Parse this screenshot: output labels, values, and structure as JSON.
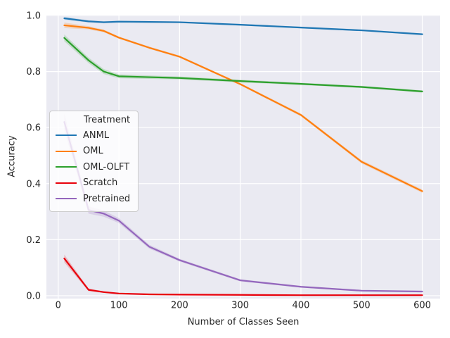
{
  "figure": {
    "xlabel": "Number of Classes Seen",
    "ylabel": "Accuracy",
    "background_color": "#ffffff",
    "plot_background_color": "#eaeaf2",
    "gridline_color": "#ffffff",
    "text_color": "#262626"
  },
  "legend": {
    "title": "Treatment",
    "position": "center-left"
  },
  "chart_data": {
    "type": "line",
    "title": "",
    "xlabel": "Number of Classes Seen",
    "ylabel": "Accuracy",
    "grid": true,
    "legend_title": "Treatment",
    "legend_position": "center-left",
    "xlim": [
      -19.5,
      629.5
    ],
    "ylim": [
      -0.0101,
      1.0025
    ],
    "x_ticks": [
      0,
      100,
      200,
      300,
      400,
      500,
      600
    ],
    "x_tick_labels": [
      "0",
      "100",
      "200",
      "300",
      "400",
      "500",
      "600"
    ],
    "y_ticks": [
      0.0,
      0.2,
      0.4,
      0.6,
      0.8,
      1.0
    ],
    "y_tick_labels": [
      "0.0",
      "0.2",
      "0.4",
      "0.6",
      "0.8",
      "1.0"
    ],
    "x": [
      10,
      50,
      75,
      100,
      150,
      200,
      300,
      400,
      500,
      600
    ],
    "series": [
      {
        "name": "ANML",
        "color": "#1f77b4",
        "values": [
          0.99,
          0.979,
          0.976,
          0.978,
          0.977,
          0.976,
          0.967,
          0.957,
          0.947,
          0.933
        ],
        "ci": [
          0.005,
          0.004,
          0.004,
          0.003,
          0.003,
          0.003,
          0.003,
          0.003,
          0.003,
          0.003
        ]
      },
      {
        "name": "OML",
        "color": "#ff7f0e",
        "values": [
          0.965,
          0.956,
          0.945,
          0.921,
          0.885,
          0.853,
          0.755,
          0.645,
          0.478,
          0.373
        ],
        "ci": [
          0.01,
          0.006,
          0.005,
          0.004,
          0.004,
          0.004,
          0.004,
          0.005,
          0.006,
          0.006
        ]
      },
      {
        "name": "OML-OLFT",
        "color": "#2ca02c",
        "values": [
          0.92,
          0.84,
          0.8,
          0.783,
          0.78,
          0.777,
          0.766,
          0.756,
          0.745,
          0.729
        ],
        "ci": [
          0.012,
          0.01,
          0.009,
          0.007,
          0.006,
          0.005,
          0.005,
          0.004,
          0.004,
          0.004
        ]
      },
      {
        "name": "Scratch",
        "color": "#e8000b",
        "values": [
          0.133,
          0.021,
          0.013,
          0.008,
          0.005,
          0.004,
          0.003,
          0.002,
          0.002,
          0.002
        ],
        "ci": [
          0.014,
          0.005,
          0.003,
          0.002,
          0.002,
          0.001,
          0.001,
          0.001,
          0.001,
          0.001
        ]
      },
      {
        "name": "Pretrained",
        "color": "#9467bd",
        "values": [
          0.62,
          0.306,
          0.293,
          0.268,
          0.175,
          0.127,
          0.055,
          0.032,
          0.018,
          0.015
        ],
        "ci": [
          0.03,
          0.013,
          0.011,
          0.009,
          0.007,
          0.005,
          0.004,
          0.003,
          0.002,
          0.002
        ]
      }
    ]
  }
}
